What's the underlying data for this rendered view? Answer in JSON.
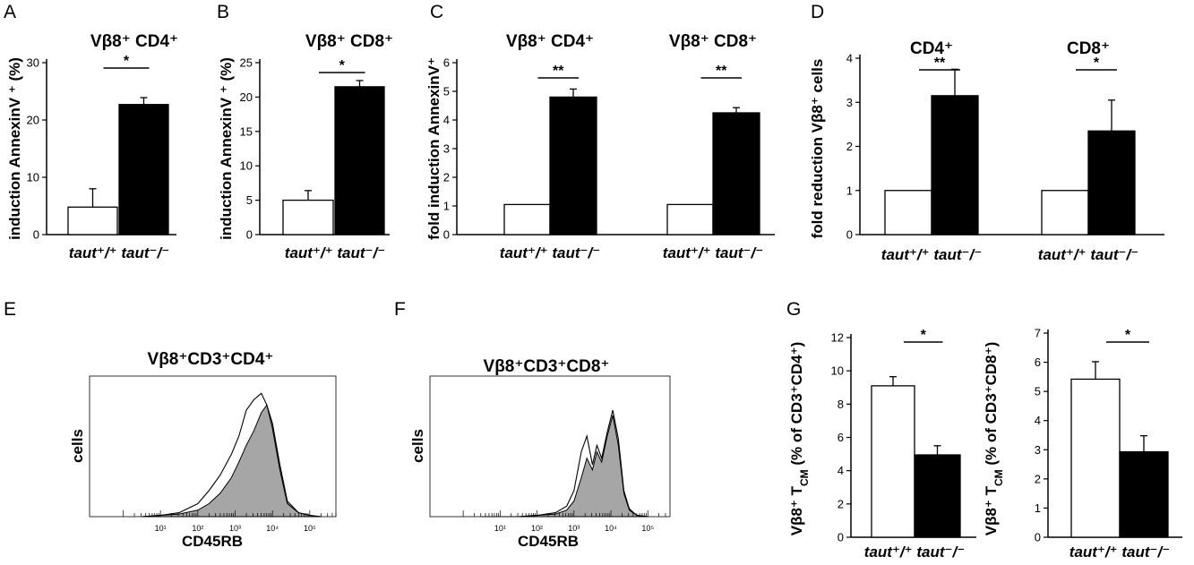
{
  "panels": [
    {
      "id": "A",
      "letter": "A",
      "title": "Vβ8⁺ CD4⁺",
      "ylabel": "induction  AnnexinV ⁺ (%)",
      "xlabel": "taut⁺/⁺ taut⁻/⁻",
      "significance": [
        {
          "label": "*",
          "between": [
            0,
            1
          ]
        }
      ],
      "chart_data": {
        "type": "bar",
        "categories": [
          "taut+/+",
          "taut-/-"
        ],
        "values": [
          4.8,
          22.7
        ],
        "errors": [
          3.2,
          1.2
        ],
        "colors": [
          "#ffffff",
          "#000000"
        ],
        "ylim": [
          0,
          30
        ],
        "yticks": [
          0,
          10,
          20,
          30
        ]
      }
    },
    {
      "id": "B",
      "letter": "B",
      "title": "Vβ8⁺ CD8⁺",
      "ylabel": "induction  AnnexinV ⁺ (%)",
      "xlabel": "taut⁺/⁺ taut⁻/⁻",
      "significance": [
        {
          "label": "*",
          "between": [
            0,
            1
          ]
        }
      ],
      "chart_data": {
        "type": "bar",
        "categories": [
          "taut+/+",
          "taut-/-"
        ],
        "values": [
          5.0,
          21.5
        ],
        "errors": [
          1.4,
          0.9
        ],
        "colors": [
          "#ffffff",
          "#000000"
        ],
        "ylim": [
          0,
          25
        ],
        "yticks": [
          0,
          5,
          10,
          15,
          20,
          25
        ]
      }
    },
    {
      "id": "C",
      "letter": "C",
      "title_left": "Vβ8⁺ CD4⁺",
      "title_right": "Vβ8⁺ CD8⁺",
      "ylabel": "fold induction  AnnexinV⁺",
      "xlabel_left": "taut⁺/⁺ taut⁻/⁻",
      "xlabel_right": "taut⁺/⁺ taut⁻/⁻",
      "significance": [
        {
          "label": "**",
          "between": [
            0,
            1
          ]
        },
        {
          "label": "**",
          "between": [
            2,
            3
          ]
        }
      ],
      "chart_data": {
        "type": "bar",
        "categories": [
          "taut+/+",
          "taut-/-",
          "taut+/+",
          "taut-/-"
        ],
        "values": [
          1.05,
          4.8,
          1.05,
          4.25
        ],
        "errors": [
          0,
          0.28,
          0,
          0.18
        ],
        "colors": [
          "#ffffff",
          "#000000",
          "#ffffff",
          "#000000"
        ],
        "ylim": [
          0,
          6
        ],
        "yticks": [
          0,
          1,
          2,
          3,
          4,
          5,
          6
        ]
      }
    },
    {
      "id": "D",
      "letter": "D",
      "title_left": "CD4⁺",
      "title_right": "CD8⁺",
      "ylabel": "fold reduction Vβ8⁺ cells",
      "xlabel_left": "taut⁺/⁺ taut⁻/⁻",
      "xlabel_right": "taut⁺/⁺ taut⁻/⁻",
      "significance": [
        {
          "label": "**",
          "between": [
            0,
            1
          ]
        },
        {
          "label": "*",
          "between": [
            2,
            3
          ]
        }
      ],
      "chart_data": {
        "type": "bar",
        "categories": [
          "taut+/+",
          "taut-/-",
          "taut+/+",
          "taut-/-"
        ],
        "values": [
          1.0,
          3.15,
          1.0,
          2.35
        ],
        "errors": [
          0,
          0.6,
          0,
          0.7
        ],
        "colors": [
          "#ffffff",
          "#000000",
          "#ffffff",
          "#000000"
        ],
        "ylim": [
          0,
          4
        ],
        "yticks": [
          0,
          1,
          2,
          3,
          4
        ]
      }
    },
    {
      "id": "G1",
      "letter": "G",
      "ylabel": "Vβ8⁺ T",
      "ylabel_sub": "CM",
      "ylabel_rest": " (% of CD3⁺CD4⁺)",
      "xlabel": "taut⁺/⁺ taut⁻/⁻",
      "significance": [
        {
          "label": "*",
          "between": [
            0,
            1
          ]
        }
      ],
      "chart_data": {
        "type": "bar",
        "categories": [
          "taut+/+",
          "taut-/-"
        ],
        "values": [
          9.1,
          4.95
        ],
        "errors": [
          0.55,
          0.55
        ],
        "colors": [
          "#ffffff",
          "#000000"
        ],
        "ylim": [
          0,
          12
        ],
        "yticks": [
          0,
          2,
          4,
          6,
          8,
          10,
          12
        ]
      }
    },
    {
      "id": "G2",
      "letter": "",
      "ylabel": "Vβ8⁺ T",
      "ylabel_sub": "CM",
      "ylabel_rest": " (% of CD3⁺CD8⁺)",
      "xlabel": "taut⁺/⁺ taut⁻/⁻",
      "significance": [
        {
          "label": "*",
          "between": [
            0,
            1
          ]
        }
      ],
      "chart_data": {
        "type": "bar",
        "categories": [
          "taut+/+",
          "taut-/-"
        ],
        "values": [
          5.42,
          2.93
        ],
        "errors": [
          0.6,
          0.55
        ],
        "colors": [
          "#ffffff",
          "#000000"
        ],
        "ylim": [
          0,
          7
        ],
        "yticks": [
          0,
          1,
          2,
          3,
          4,
          5,
          6,
          7
        ]
      }
    }
  ],
  "flow": [
    {
      "id": "E",
      "letter": "E",
      "title": "Vβ8⁺CD3⁺CD4⁺",
      "ylabel": "cells",
      "xlabel": "CD45RB",
      "decade_labels": [
        "10¹",
        "10²",
        "10³",
        "10⁴",
        "10⁵"
      ],
      "chart_data": {
        "type": "area",
        "x_log10": [
          0.5,
          1.0,
          1.5,
          2.0,
          2.3,
          2.6,
          2.9,
          3.1,
          3.3,
          3.5,
          3.7,
          3.85,
          4.0,
          4.2,
          4.4,
          4.7,
          5.0,
          5.3
        ],
        "filled_series": [
          0,
          0.01,
          0.02,
          0.05,
          0.1,
          0.18,
          0.3,
          0.42,
          0.55,
          0.66,
          0.8,
          0.86,
          0.72,
          0.4,
          0.12,
          0.03,
          0.01,
          0
        ],
        "outline_series": [
          0,
          0.01,
          0.03,
          0.1,
          0.2,
          0.32,
          0.48,
          0.62,
          0.82,
          0.9,
          0.95,
          0.86,
          0.68,
          0.36,
          0.1,
          0.03,
          0.01,
          0
        ]
      }
    },
    {
      "id": "F",
      "letter": "F",
      "title": "Vβ8⁺CD3⁺CD8⁺",
      "ylabel": "cells",
      "xlabel": "CD45RB",
      "decade_labels": [
        "10¹",
        "10²",
        "10³",
        "10⁴",
        "10⁵"
      ],
      "chart_data": {
        "type": "area",
        "x_log10": [
          0.5,
          1.0,
          1.5,
          2.0,
          2.5,
          2.8,
          3.0,
          3.2,
          3.35,
          3.5,
          3.62,
          3.75,
          3.9,
          4.05,
          4.2,
          4.35,
          4.5,
          4.7,
          5.0
        ],
        "filled_series": [
          0,
          0,
          0,
          0.01,
          0.02,
          0.05,
          0.12,
          0.3,
          0.45,
          0.36,
          0.5,
          0.42,
          0.62,
          0.78,
          0.55,
          0.18,
          0.05,
          0.01,
          0
        ],
        "outline_series": [
          0,
          0,
          0,
          0.01,
          0.03,
          0.08,
          0.2,
          0.5,
          0.62,
          0.4,
          0.55,
          0.45,
          0.65,
          0.82,
          0.6,
          0.2,
          0.06,
          0.01,
          0
        ]
      }
    }
  ]
}
